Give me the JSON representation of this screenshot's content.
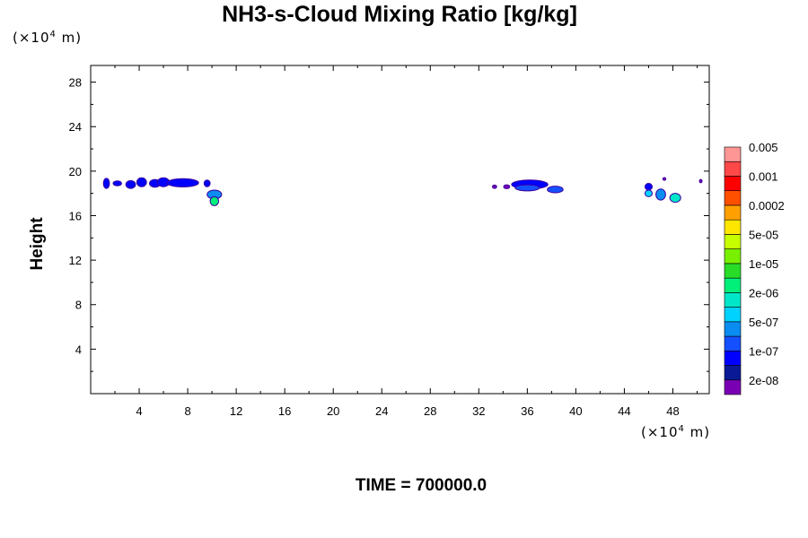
{
  "chart_data": {
    "type": "heatmap",
    "title": "NH3-s-Cloud Mixing Ratio [kg/kg]",
    "xlabel": "",
    "ylabel": "Height",
    "x_unit_prefix": "(×10",
    "x_unit_exp": "4",
    "x_unit_suffix": " m)",
    "y_unit_prefix": "(×10",
    "y_unit_exp": "4",
    "y_unit_suffix": " m)",
    "xlim": [
      0,
      51
    ],
    "ylim": [
      0,
      29.5
    ],
    "x_ticks": [
      4,
      8,
      12,
      16,
      20,
      24,
      28,
      32,
      36,
      40,
      44,
      48
    ],
    "y_ticks": [
      4,
      8,
      12,
      16,
      20,
      24,
      28
    ],
    "colorbar": {
      "colors": [
        "#7a00b4",
        "#0a1a96",
        "#0000ff",
        "#1550ff",
        "#0a8cf0",
        "#00d2ff",
        "#00e6c8",
        "#00f07a",
        "#28dc28",
        "#78f000",
        "#c8ff00",
        "#ffe600",
        "#ffa000",
        "#ff5000",
        "#ff0000",
        "#ff4848",
        "#ff9696"
      ],
      "labels": [
        "2e-08",
        "1e-07",
        "5e-07",
        "2e-06",
        "1e-05",
        "5e-05",
        "0.0002",
        "0.001",
        "0.005"
      ]
    },
    "blobs": [
      {
        "x": 1.3,
        "y": 18.9,
        "w": 0.5,
        "h": 0.9,
        "level": 2
      },
      {
        "x": 2.2,
        "y": 18.9,
        "w": 0.7,
        "h": 0.45,
        "level": 2
      },
      {
        "x": 3.3,
        "y": 18.8,
        "w": 0.8,
        "h": 0.7,
        "level": 2
      },
      {
        "x": 4.2,
        "y": 19.0,
        "w": 0.8,
        "h": 0.8,
        "level": 2
      },
      {
        "x": 5.3,
        "y": 18.9,
        "w": 0.9,
        "h": 0.7,
        "level": 2
      },
      {
        "x": 6.0,
        "y": 19.0,
        "w": 1.0,
        "h": 0.8,
        "level": 2
      },
      {
        "x": 7.6,
        "y": 18.95,
        "w": 2.6,
        "h": 0.75,
        "level": 2
      },
      {
        "x": 9.6,
        "y": 18.9,
        "w": 0.5,
        "h": 0.6,
        "level": 2
      },
      {
        "x": 10.2,
        "y": 17.9,
        "w": 1.2,
        "h": 0.8,
        "level": 4
      },
      {
        "x": 10.2,
        "y": 17.3,
        "w": 0.7,
        "h": 0.8,
        "level": 7
      },
      {
        "x": 33.3,
        "y": 18.6,
        "w": 0.35,
        "h": 0.3,
        "level": 0
      },
      {
        "x": 34.3,
        "y": 18.6,
        "w": 0.5,
        "h": 0.35,
        "level": 0
      },
      {
        "x": 36.2,
        "y": 18.8,
        "w": 3.0,
        "h": 0.8,
        "level": 2
      },
      {
        "x": 36.0,
        "y": 18.5,
        "w": 2.0,
        "h": 0.55,
        "level": 3
      },
      {
        "x": 38.3,
        "y": 18.35,
        "w": 1.3,
        "h": 0.6,
        "level": 3
      },
      {
        "x": 46.0,
        "y": 18.6,
        "w": 0.6,
        "h": 0.6,
        "level": 2
      },
      {
        "x": 46.0,
        "y": 18.0,
        "w": 0.6,
        "h": 0.6,
        "level": 5
      },
      {
        "x": 47.0,
        "y": 17.9,
        "w": 0.8,
        "h": 1.0,
        "level": 4
      },
      {
        "x": 48.2,
        "y": 17.6,
        "w": 0.9,
        "h": 0.8,
        "level": 6
      },
      {
        "x": 47.3,
        "y": 19.3,
        "w": 0.25,
        "h": 0.25,
        "level": 0
      },
      {
        "x": 50.3,
        "y": 19.1,
        "w": 0.2,
        "h": 0.3,
        "level": 0
      }
    ]
  },
  "footer": {
    "time_label": "TIME = 700000.0"
  }
}
